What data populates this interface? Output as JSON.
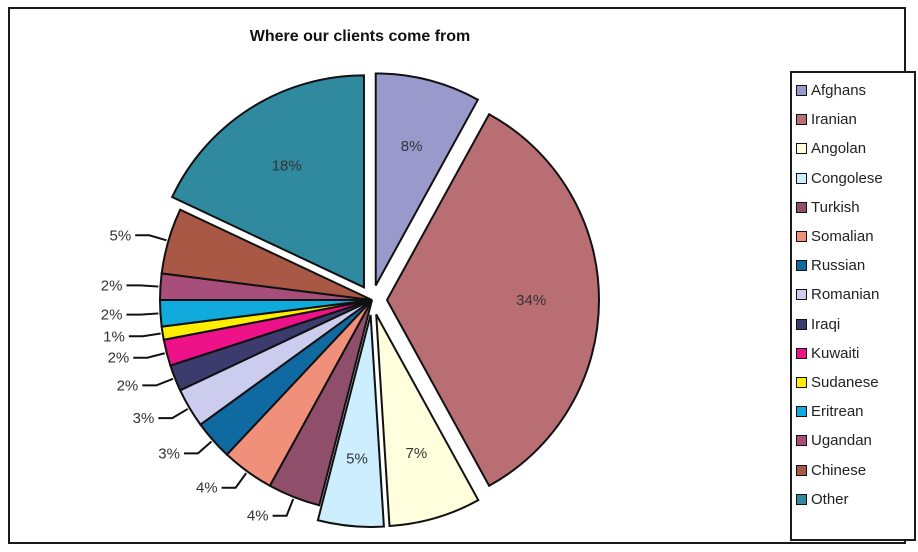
{
  "chart_data": {
    "type": "pie",
    "title": "Where our clients come from",
    "legend": "right",
    "slices": [
      {
        "label": "Afghans",
        "value": 8,
        "display": "8%",
        "color": "#9999cc",
        "exploded": true
      },
      {
        "label": "Iranian",
        "value": 34,
        "display": "34%",
        "color": "#b86e72",
        "exploded": true
      },
      {
        "label": "Angolan",
        "value": 7,
        "display": "7%",
        "color": "#ffffdd",
        "exploded": true
      },
      {
        "label": "Congolese",
        "value": 5,
        "display": "5%",
        "color": "#cceeff",
        "exploded": true
      },
      {
        "label": "Turkish",
        "value": 4,
        "display": "4%",
        "color": "#8f4f6a",
        "exploded": false
      },
      {
        "label": "Somalian",
        "value": 4,
        "display": "4%",
        "color": "#f0907a",
        "exploded": false
      },
      {
        "label": "Russian",
        "value": 3,
        "display": "3%",
        "color": "#0e6aa0",
        "exploded": false
      },
      {
        "label": "Romanian",
        "value": 3,
        "display": "3%",
        "color": "#ccccee",
        "exploded": false
      },
      {
        "label": "Iraqi",
        "value": 2,
        "display": "2%",
        "color": "#3b3b6e",
        "exploded": false
      },
      {
        "label": "Kuwaiti",
        "value": 2,
        "display": "2%",
        "color": "#ee1188",
        "exploded": false
      },
      {
        "label": "Sudanese",
        "value": 1,
        "display": "1%",
        "color": "#ffee00",
        "exploded": false
      },
      {
        "label": "Eritrean",
        "value": 2,
        "display": "2%",
        "color": "#11aadd",
        "exploded": false
      },
      {
        "label": "Ugandan",
        "value": 2,
        "display": "2%",
        "color": "#a84e7a",
        "exploded": false
      },
      {
        "label": "Chinese",
        "value": 5,
        "display": "5%",
        "color": "#a85845",
        "exploded": false
      },
      {
        "label": "Other",
        "value": 18,
        "display": "18%",
        "color": "#2f8aa0",
        "exploded": true
      }
    ]
  }
}
